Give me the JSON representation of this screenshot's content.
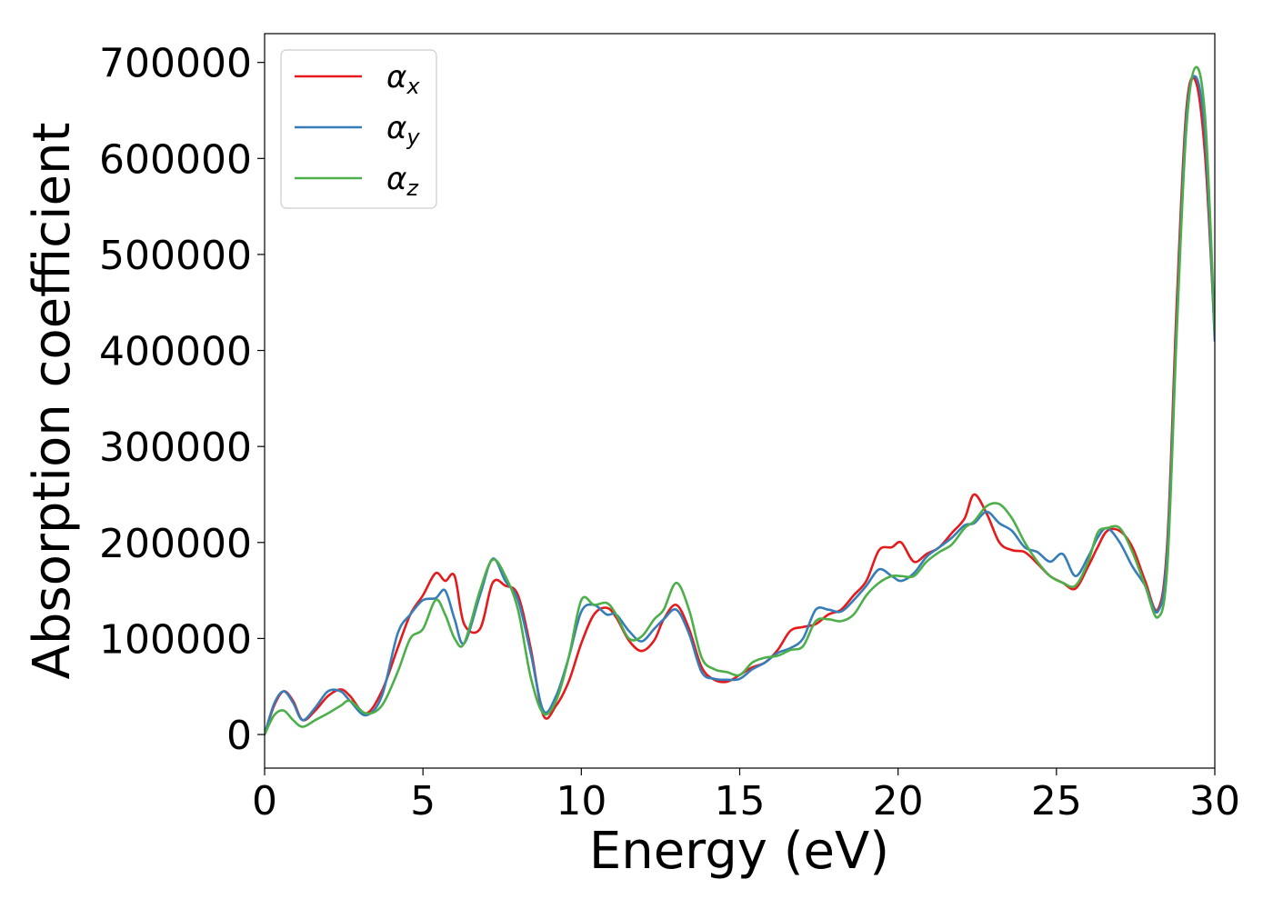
{
  "chart_data": {
    "type": "line",
    "xlabel": "Energy (eV)",
    "ylabel": "Absorption coefficient",
    "xlim": [
      0,
      30
    ],
    "ylim": [
      -35000,
      730000
    ],
    "x_ticks": [
      0,
      5,
      10,
      15,
      20,
      25,
      30
    ],
    "y_ticks": [
      0,
      100000,
      200000,
      300000,
      400000,
      500000,
      600000,
      700000
    ],
    "grid": false,
    "legend_position": "top-left",
    "series": [
      {
        "name": "α",
        "subscript": "x",
        "color": "#e41a1c",
        "x": [
          0,
          0.3,
          0.6,
          0.9,
          1.2,
          1.6,
          2.0,
          2.4,
          2.7,
          3.2,
          3.7,
          4.2,
          4.6,
          5.0,
          5.4,
          5.7,
          6.0,
          6.3,
          6.8,
          7.2,
          7.6,
          8.0,
          8.4,
          8.8,
          9.2,
          9.6,
          10.0,
          10.4,
          10.8,
          11.1,
          11.5,
          11.9,
          12.3,
          12.6,
          13.0,
          13.4,
          13.8,
          14.2,
          14.6,
          15.0,
          15.4,
          15.8,
          16.2,
          16.6,
          17.0,
          17.4,
          17.8,
          18.2,
          18.6,
          19.0,
          19.4,
          19.8,
          20.1,
          20.5,
          20.9,
          21.3,
          21.7,
          22.1,
          22.4,
          22.8,
          23.2,
          23.6,
          24.0,
          24.4,
          24.8,
          25.2,
          25.6,
          26.0,
          26.3,
          26.6,
          27.0,
          27.4,
          27.8,
          28.2,
          28.5,
          28.8,
          29.1,
          29.4,
          29.7,
          30.0
        ],
        "y": [
          0,
          30000,
          45000,
          35000,
          15000,
          25000,
          40000,
          47000,
          40000,
          22000,
          45000,
          90000,
          125000,
          145000,
          168000,
          160000,
          165000,
          115000,
          110000,
          158000,
          155000,
          145000,
          90000,
          20000,
          30000,
          55000,
          95000,
          125000,
          132000,
          122000,
          98000,
          87000,
          98000,
          120000,
          135000,
          110000,
          70000,
          57000,
          55000,
          62000,
          70000,
          75000,
          88000,
          108000,
          112000,
          115000,
          125000,
          130000,
          145000,
          160000,
          192000,
          195000,
          200000,
          180000,
          188000,
          195000,
          210000,
          225000,
          250000,
          230000,
          200000,
          192000,
          190000,
          178000,
          165000,
          158000,
          152000,
          175000,
          195000,
          212000,
          212000,
          195000,
          160000,
          130000,
          200000,
          450000,
          650000,
          680000,
          600000,
          415000
        ]
      },
      {
        "name": "α",
        "subscript": "y",
        "color": "#377eb8",
        "x": [
          0,
          0.3,
          0.6,
          0.9,
          1.2,
          1.6,
          2.0,
          2.4,
          2.7,
          3.2,
          3.7,
          4.2,
          4.6,
          5.0,
          5.4,
          5.7,
          6.0,
          6.3,
          6.8,
          7.2,
          7.6,
          8.0,
          8.4,
          8.8,
          9.2,
          9.6,
          10.0,
          10.4,
          10.8,
          11.1,
          11.5,
          11.9,
          12.3,
          12.6,
          13.0,
          13.4,
          13.8,
          14.2,
          14.6,
          15.0,
          15.4,
          15.8,
          16.2,
          16.6,
          17.0,
          17.4,
          17.8,
          18.2,
          18.6,
          19.0,
          19.4,
          19.8,
          20.1,
          20.5,
          20.9,
          21.3,
          21.7,
          22.1,
          22.4,
          22.8,
          23.2,
          23.6,
          24.0,
          24.4,
          24.8,
          25.2,
          25.6,
          26.0,
          26.3,
          26.6,
          27.0,
          27.4,
          27.8,
          28.2,
          28.5,
          28.8,
          29.1,
          29.4,
          29.7,
          30.0
        ],
        "y": [
          0,
          32000,
          45000,
          33000,
          15000,
          28000,
          45000,
          45000,
          35000,
          20000,
          40000,
          105000,
          125000,
          140000,
          142000,
          150000,
          120000,
          95000,
          145000,
          183000,
          160000,
          140000,
          85000,
          25000,
          40000,
          80000,
          128000,
          135000,
          125000,
          125000,
          108000,
          97000,
          110000,
          120000,
          130000,
          105000,
          65000,
          58000,
          57000,
          58000,
          68000,
          75000,
          85000,
          90000,
          100000,
          130000,
          130000,
          128000,
          140000,
          155000,
          172000,
          165000,
          160000,
          168000,
          185000,
          195000,
          205000,
          218000,
          220000,
          232000,
          220000,
          212000,
          195000,
          190000,
          180000,
          188000,
          165000,
          185000,
          205000,
          215000,
          200000,
          175000,
          155000,
          128000,
          190000,
          430000,
          640000,
          685000,
          620000,
          410000
        ]
      },
      {
        "name": "α",
        "subscript": "z",
        "color": "#4daf4a",
        "x": [
          0,
          0.3,
          0.6,
          0.9,
          1.2,
          1.6,
          2.0,
          2.4,
          2.7,
          3.2,
          3.7,
          4.2,
          4.6,
          5.0,
          5.4,
          5.7,
          6.0,
          6.3,
          6.8,
          7.2,
          7.6,
          8.0,
          8.4,
          8.8,
          9.2,
          9.6,
          10.0,
          10.4,
          10.8,
          11.1,
          11.5,
          11.9,
          12.3,
          12.6,
          13.0,
          13.4,
          13.8,
          14.2,
          14.6,
          15.0,
          15.4,
          15.8,
          16.2,
          16.6,
          17.0,
          17.4,
          17.8,
          18.2,
          18.6,
          19.0,
          19.4,
          19.8,
          20.1,
          20.5,
          20.9,
          21.3,
          21.7,
          22.1,
          22.4,
          22.8,
          23.2,
          23.6,
          24.0,
          24.4,
          24.8,
          25.2,
          25.6,
          26.0,
          26.3,
          26.6,
          27.0,
          27.4,
          27.8,
          28.2,
          28.5,
          28.8,
          29.1,
          29.4,
          29.7,
          30.0
        ],
        "y": [
          0,
          20000,
          25000,
          15000,
          8000,
          15000,
          22000,
          30000,
          35000,
          22000,
          30000,
          65000,
          100000,
          110000,
          140000,
          125000,
          100000,
          95000,
          150000,
          182000,
          165000,
          130000,
          60000,
          22000,
          35000,
          80000,
          140000,
          135000,
          137000,
          125000,
          100000,
          102000,
          120000,
          130000,
          158000,
          130000,
          80000,
          68000,
          65000,
          62000,
          75000,
          80000,
          82000,
          88000,
          92000,
          118000,
          120000,
          118000,
          125000,
          145000,
          158000,
          165000,
          165000,
          165000,
          180000,
          190000,
          198000,
          215000,
          222000,
          238000,
          240000,
          225000,
          200000,
          180000,
          165000,
          158000,
          155000,
          180000,
          210000,
          215000,
          215000,
          190000,
          155000,
          122000,
          175000,
          420000,
          630000,
          695000,
          640000,
          420000
        ]
      }
    ]
  }
}
